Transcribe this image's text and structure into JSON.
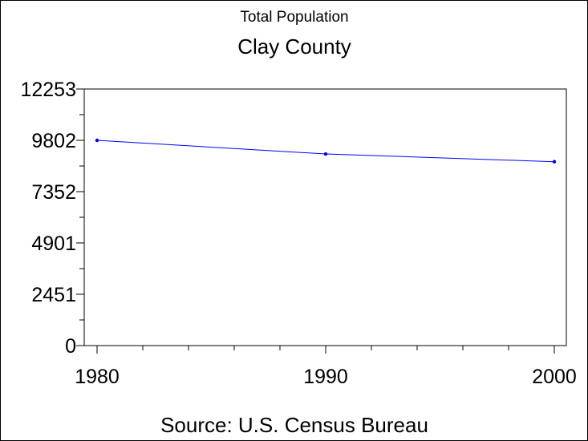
{
  "chart_data": {
    "type": "line",
    "title": "Clay County",
    "subtitle": "Total Population",
    "caption": "Source: U.S. Census Bureau",
    "xlabel": "",
    "ylabel": "",
    "x": [
      1980,
      1990,
      2000
    ],
    "x_tick_labels": [
      "1980",
      "1990",
      "2000"
    ],
    "y_tick_labels": [
      "0",
      "2451",
      "4901",
      "7352",
      "9802",
      "12253"
    ],
    "y_ticks": [
      0,
      2451,
      4901,
      7352,
      9802,
      12253
    ],
    "ylim": [
      0,
      12253
    ],
    "xlim": [
      1980,
      2000
    ],
    "grid": false,
    "series": [
      {
        "values": [
          9802,
          9150,
          8780
        ],
        "color": "#0000ff"
      }
    ]
  }
}
